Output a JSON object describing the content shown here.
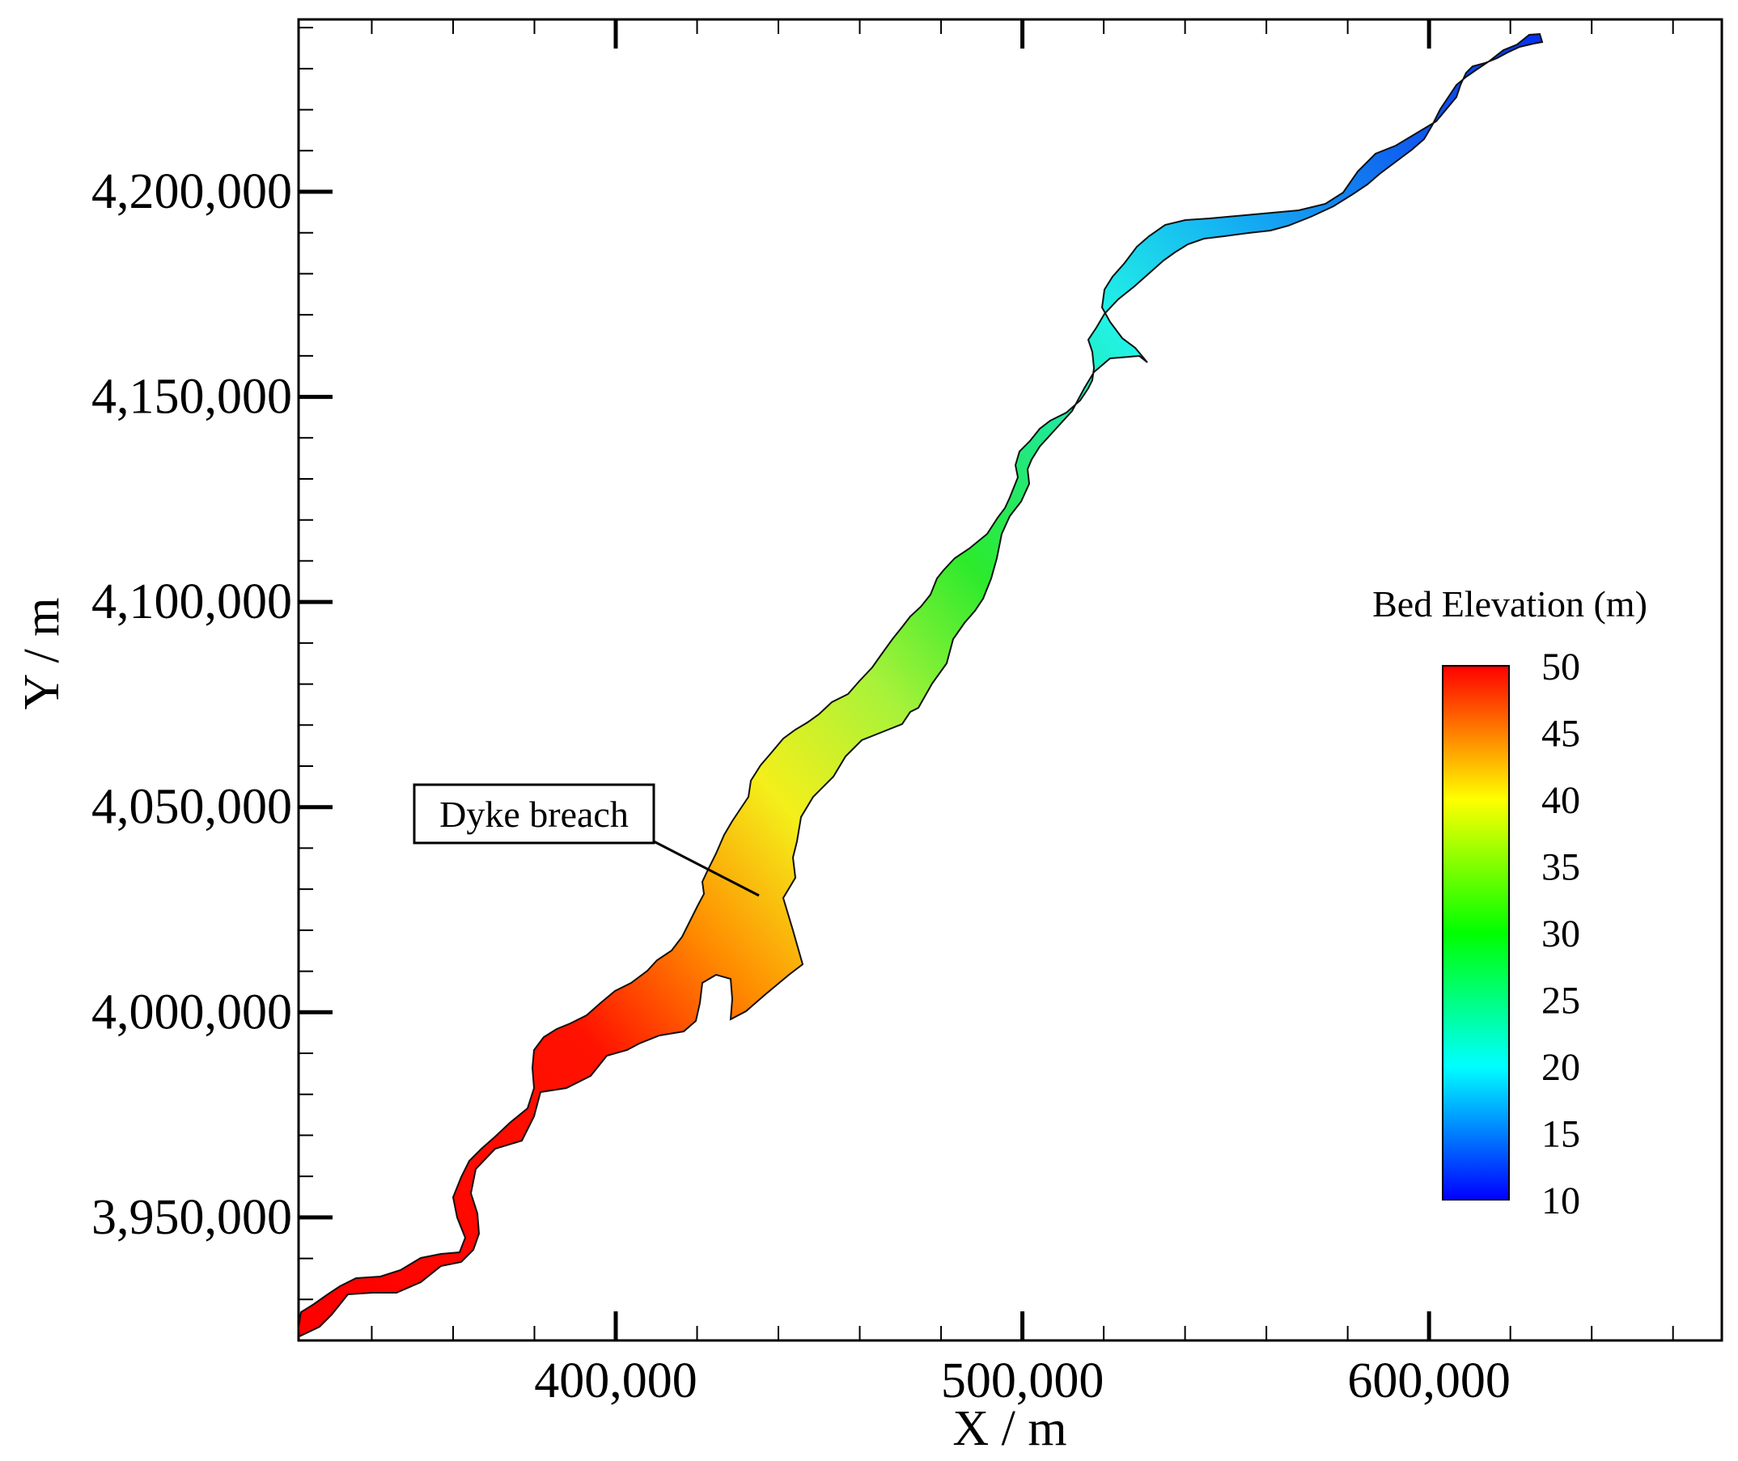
{
  "chart_data": {
    "type": "heatmap",
    "title": "",
    "xlabel": "X / m",
    "ylabel": "Y / m",
    "xlim": [
      322000,
      672000
    ],
    "ylim": [
      3920000,
      4242000
    ],
    "xticks": [
      400000,
      500000,
      600000
    ],
    "xtick_labels": [
      "400,000",
      "500,000",
      "600,000"
    ],
    "yticks": [
      3950000,
      4000000,
      4050000,
      4100000,
      4150000,
      4200000
    ],
    "ytick_labels": [
      "3,950,000",
      "4,000,000",
      "4,050,000",
      "4,100,000",
      "4,150,000",
      "4,200,000"
    ],
    "colorbar": {
      "title": "Bed Elevation (m)",
      "min": 10,
      "max": 50,
      "ticks": [
        50,
        45,
        40,
        35,
        30,
        25,
        20,
        15,
        10
      ],
      "colors": [
        "#0000ff",
        "#00ffff",
        "#00ff00",
        "#ffff00",
        "#ff0000"
      ]
    },
    "annotation": {
      "text": "Dyke breach",
      "x": 437000,
      "y": 4030000
    },
    "elevation_profile": [
      {
        "x": 340000,
        "y": 3928000,
        "z": 50
      },
      {
        "x": 390000,
        "y": 3965000,
        "z": 50
      },
      {
        "x": 420000,
        "y": 3995000,
        "z": 46
      },
      {
        "x": 440000,
        "y": 4030000,
        "z": 40
      },
      {
        "x": 460000,
        "y": 4060000,
        "z": 34
      },
      {
        "x": 485000,
        "y": 4090000,
        "z": 30
      },
      {
        "x": 510000,
        "y": 4120000,
        "z": 22
      },
      {
        "x": 545000,
        "y": 4160000,
        "z": 18
      },
      {
        "x": 600000,
        "y": 4180000,
        "z": 12
      },
      {
        "x": 665000,
        "y": 4233000,
        "z": 10
      }
    ]
  }
}
